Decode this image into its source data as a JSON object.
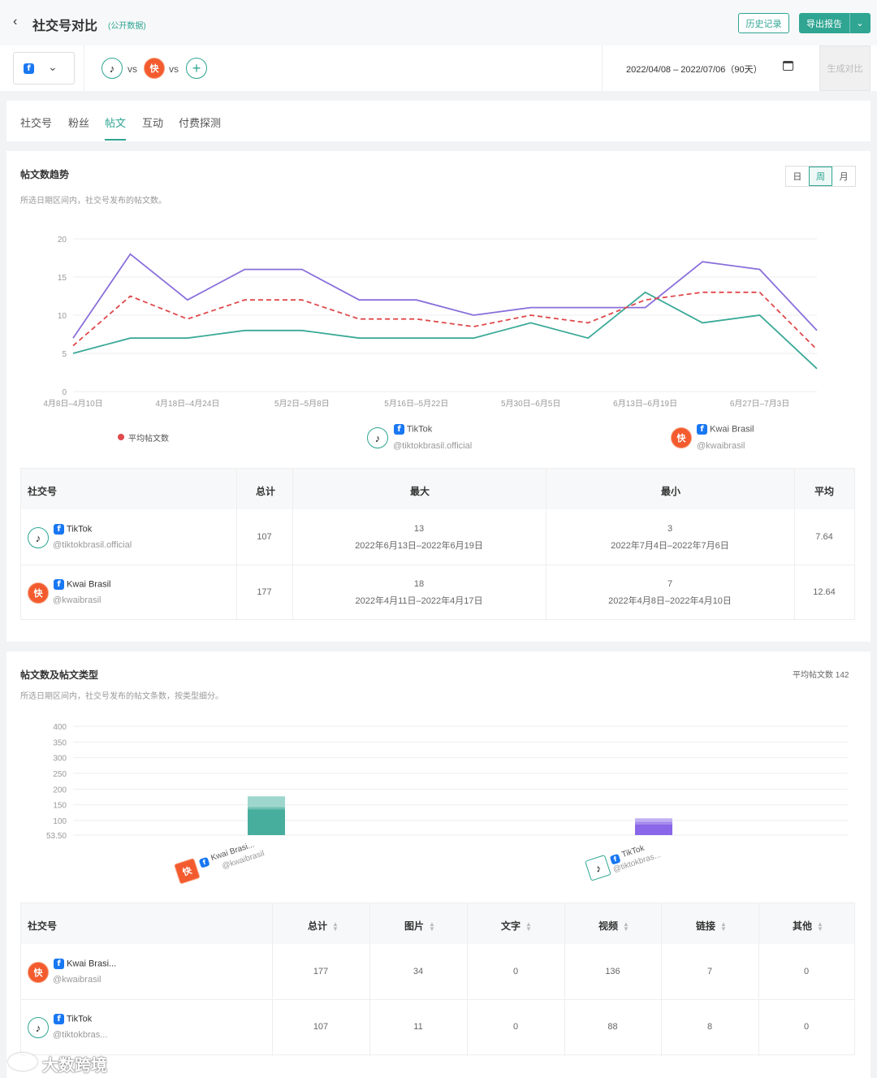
{
  "header": {
    "title": "社交号对比",
    "badge": "(公开数据)",
    "history": "历史记录",
    "export": "导出报告"
  },
  "compare": {
    "vs1": "vs",
    "vs2": "vs",
    "date_range": "2022/04/08 – 2022/07/06（90天）",
    "generate": "生成对比"
  },
  "tabs": [
    "社交号",
    "粉丝",
    "帖文",
    "互动",
    "付费探测"
  ],
  "trend": {
    "title": "帖文数趋势",
    "desc": "所选日期区间内，社交号发布的帖文数。",
    "granularity": [
      "日",
      "周",
      "月"
    ],
    "legend_avg": "平均帖文数",
    "accounts": [
      {
        "name": "TikTok",
        "handle": "@tiktokbrasil.official"
      },
      {
        "name": "Kwai Brasil",
        "handle": "@kwaibrasil"
      }
    ]
  },
  "chart_data": [
    {
      "type": "line",
      "yticks": [
        "20",
        "15",
        "10",
        "5",
        "0"
      ],
      "ylim": [
        0,
        20
      ],
      "x_labels": [
        "4月8日–4月10日",
        "4月18日–4月24日",
        "5月2日–5月8日",
        "5月16日–5月22日",
        "5月30日–6月5日",
        "6月13日–6月19日",
        "6月27日–7月3日"
      ],
      "colors": {
        "kwai": "#8a6fdb",
        "tiktok": "#3aa997",
        "avg": "#e0494c"
      },
      "series": [
        {
          "key": "kwai",
          "values": [
            7,
            18,
            12,
            16,
            16,
            12,
            12,
            10,
            11,
            11,
            11,
            17,
            16,
            8
          ]
        },
        {
          "key": "tiktok",
          "values": [
            5,
            7,
            7,
            8,
            8,
            7,
            7,
            7,
            9,
            7,
            13,
            9,
            10,
            3
          ]
        },
        {
          "key": "avg",
          "name": "平均帖文数",
          "values": [
            6,
            12.5,
            9.5,
            12,
            12,
            9.5,
            9.5,
            8.5,
            10,
            9,
            12,
            13,
            13,
            5.5
          ]
        }
      ]
    },
    {
      "type": "bar",
      "yticks": [
        "400",
        "350",
        "300",
        "250",
        "200",
        "150",
        "100",
        "53.50"
      ],
      "categories": [
        {
          "name": "Kwai Brasi...",
          "handle": "@kwaibrasil"
        },
        {
          "name": "TikTok",
          "handle": "@tiktokbras..."
        }
      ],
      "stacks": [
        {
          "values": {
            "视频": 136,
            "链接": 7,
            "图片": 34
          }
        },
        {
          "values": {
            "视频": 88,
            "链接": 8,
            "图片": 11
          }
        }
      ]
    }
  ],
  "trend_table": {
    "headers": [
      "社交号",
      "总计",
      "最大",
      "最小",
      "平均"
    ],
    "rows": [
      {
        "name": "TikTok",
        "handle": "@tiktokbrasil.official",
        "total": "107",
        "max_val": "13",
        "max_range": "2022年6月13日–2022年6月19日",
        "min_val": "3",
        "min_range": "2022年7月4日–2022年7月6日",
        "avg": "7.64"
      },
      {
        "name": "Kwai Brasil",
        "handle": "@kwaibrasil",
        "total": "177",
        "max_val": "18",
        "max_range": "2022年4月11日–2022年4月17日",
        "min_val": "7",
        "min_range": "2022年4月8日–2022年4月10日",
        "avg": "12.64"
      }
    ]
  },
  "types": {
    "title": "帖文数及帖文类型",
    "desc": "所选日期区间内，社交号发布的帖文条数，按类型细分。",
    "avg_label": "平均帖文数 142",
    "headers": [
      "社交号",
      "总计",
      "图片",
      "文字",
      "视频",
      "链接",
      "其他"
    ],
    "rows": [
      {
        "name": "Kwai Brasi...",
        "handle": "@kwaibrasil",
        "cells": [
          "177",
          "34",
          "0",
          "136",
          "7",
          "0"
        ]
      },
      {
        "name": "TikTok",
        "handle": "@tiktokbras...",
        "cells": [
          "107",
          "11",
          "0",
          "88",
          "8",
          "0"
        ]
      }
    ]
  },
  "watermark": "大数跨境"
}
